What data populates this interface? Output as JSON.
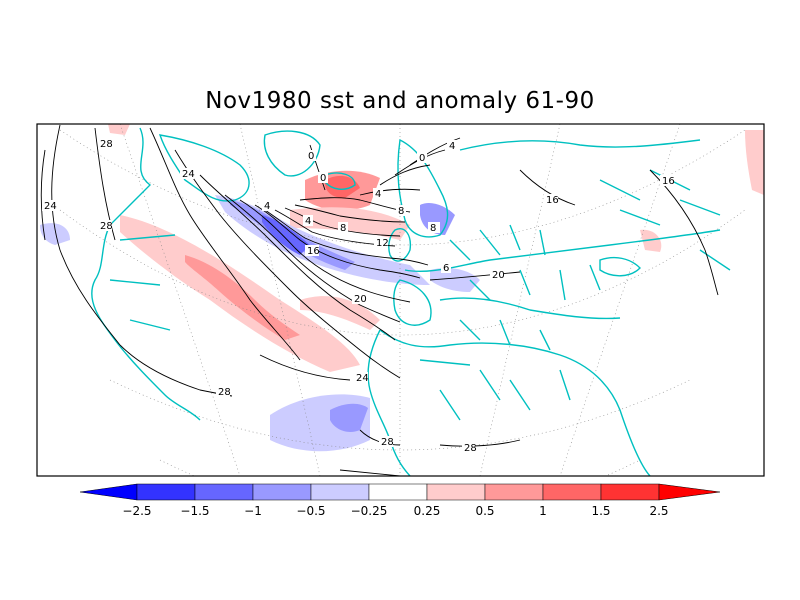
{
  "title": "Nov1980 sst and anomaly 61-90",
  "colorbar": {
    "colors": [
      "#0000ff",
      "#3333ff",
      "#6666ff",
      "#9999ff",
      "#ccccff",
      "#ffffff",
      "#ffcccc",
      "#ff9999",
      "#ff6666",
      "#ff3333",
      "#ff0000"
    ],
    "labels": [
      "-2.5",
      "-1.5",
      "-1",
      "-0.5",
      "-0.25",
      "0.25",
      "0.5",
      "1",
      "1.5",
      "2.5"
    ]
  },
  "map": {
    "coastline_color": "#00c0c0",
    "contour_labels": [
      "28",
      "24",
      "28",
      "24",
      "0",
      "0",
      "0",
      "4",
      "4",
      "4",
      "8",
      "8",
      "8",
      "12",
      "16",
      "16",
      "20",
      "20",
      "24",
      "28",
      "28",
      "28",
      "16",
      "8",
      "6",
      "4"
    ]
  }
}
